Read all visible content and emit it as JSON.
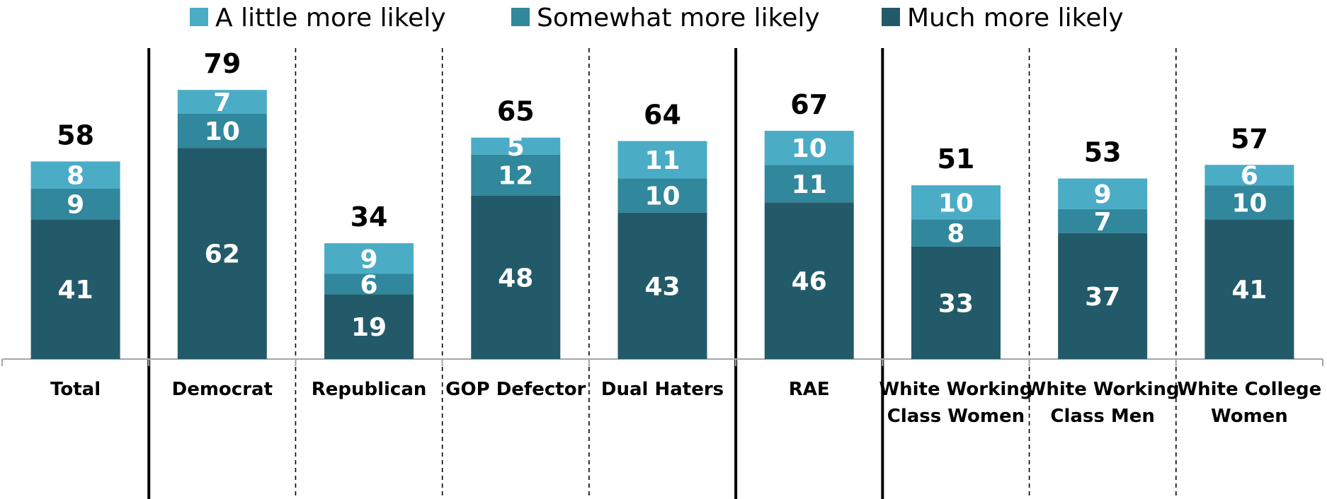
{
  "chart_data": {
    "type": "bar",
    "stacked": true,
    "title": "",
    "xlabel": "",
    "ylabel": "",
    "ylim": [
      0,
      100
    ],
    "grid": false,
    "legend_position": "top",
    "categories": [
      "Total",
      "Democrat",
      "Republican",
      "GOP Defector",
      "Dual Haters",
      "RAE",
      "White Working Class Women",
      "White Working Class Men",
      "White College Women"
    ],
    "category_lines": [
      [
        "Total"
      ],
      [
        "Democrat"
      ],
      [
        "Republican"
      ],
      [
        "GOP Defector"
      ],
      [
        "Dual Haters"
      ],
      [
        "RAE"
      ],
      [
        "White Working",
        "Class Women"
      ],
      [
        "White Working",
        "Class Men"
      ],
      [
        "White College",
        "Women"
      ]
    ],
    "series": [
      {
        "name": "Much more likely",
        "color": "#235A69",
        "values": [
          41,
          62,
          19,
          48,
          43,
          46,
          33,
          37,
          41
        ]
      },
      {
        "name": "Somewhat more likely",
        "color": "#31879C",
        "values": [
          9,
          10,
          6,
          12,
          10,
          11,
          8,
          7,
          10
        ]
      },
      {
        "name": "A little more likely",
        "color": "#4BACC6",
        "values": [
          8,
          7,
          9,
          5,
          11,
          10,
          10,
          9,
          6
        ]
      }
    ],
    "totals": [
      58,
      79,
      34,
      65,
      64,
      67,
      51,
      53,
      57
    ],
    "legend_order": [
      "A little more likely",
      "Somewhat more likely",
      "Much more likely"
    ],
    "separators": [
      "solid",
      "dashed",
      "dashed",
      "dashed",
      "solid",
      "solid",
      "dashed",
      "dashed"
    ]
  }
}
